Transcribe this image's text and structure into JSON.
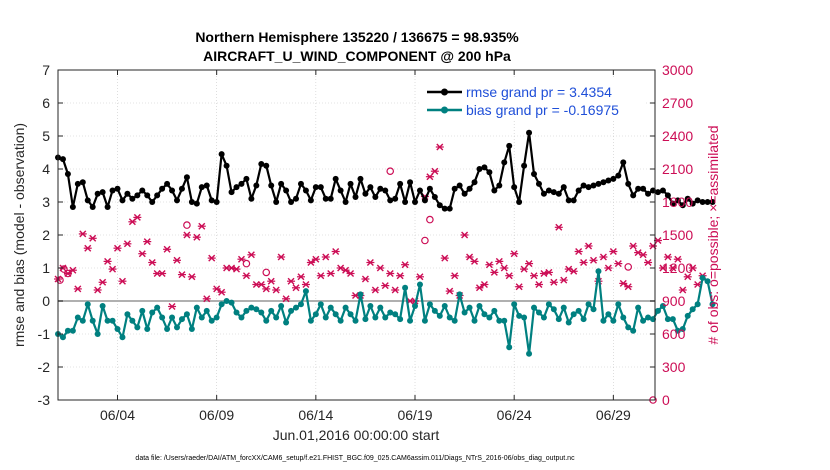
{
  "chart_data": {
    "type": "line",
    "title_line1": "Northern Hemisphere 135220 / 136675 = 98.935%",
    "title_line2": "AIRCRAFT_U_WIND_COMPONENT @ 200 hPa",
    "ylabel": "rmse and bias (model - observation)",
    "ylabel_right": "# of obs: o=possible; ×=assimilated",
    "xlabel": "Jun.01,2016 00:00:00 start",
    "footer": "data file: /Users/raeder/DAI/ATM_forcXX/CAM6_setup/f.e21.FHIST_BGC.f09_025.CAM6assim.011/Diags_NTrS_2016-06/obs_diag_output.nc",
    "ylim": [
      -3,
      7
    ],
    "ylim_right": [
      0,
      3000
    ],
    "xlim": [
      1,
      31.1
    ],
    "yticks": [
      "-3",
      "-2",
      "-1",
      "0",
      "1",
      "2",
      "3",
      "4",
      "5",
      "6",
      "7"
    ],
    "yticks_right": [
      "0",
      "300",
      "600",
      "900",
      "1200",
      "1500",
      "1800",
      "2100",
      "2400",
      "2700",
      "3000"
    ],
    "xticks": [
      {
        "day": 4,
        "label": "06/04"
      },
      {
        "day": 9,
        "label": "06/09"
      },
      {
        "day": 14,
        "label": "06/14"
      },
      {
        "day": 19,
        "label": "06/19"
      },
      {
        "day": 24,
        "label": "06/24"
      },
      {
        "day": 29,
        "label": "06/29"
      }
    ],
    "x_start": 1.0,
    "x_step": 0.25,
    "series": [
      {
        "name": "rmse grand pr = 3.4354",
        "color": "#000000",
        "values": [
          4.35,
          4.3,
          3.85,
          2.85,
          3.55,
          3.6,
          3.05,
          2.85,
          3.25,
          3.3,
          2.85,
          3.35,
          3.4,
          3.05,
          3.25,
          3.1,
          3.2,
          3.35,
          3.2,
          3.0,
          3.2,
          3.4,
          3.55,
          3.35,
          3.05,
          3.4,
          3.75,
          3.0,
          2.95,
          3.45,
          3.5,
          3.05,
          3.0,
          4.45,
          4.1,
          3.3,
          3.45,
          3.55,
          3.7,
          3.1,
          3.5,
          4.15,
          4.1,
          3.5,
          3.0,
          3.55,
          3.35,
          3.0,
          3.1,
          3.55,
          3.35,
          3.05,
          3.45,
          3.45,
          3.1,
          3.1,
          3.7,
          3.35,
          3.0,
          3.55,
          3.15,
          3.7,
          3.25,
          3.45,
          3.15,
          3.4,
          3.35,
          3.05,
          3.1,
          3.55,
          3.0,
          3.6,
          3.0,
          3.35,
          3.05,
          3.4,
          3.15,
          2.9,
          2.8,
          2.8,
          3.4,
          3.5,
          3.25,
          3.4,
          3.6,
          4.0,
          4.05,
          3.9,
          3.35,
          3.5,
          4.2,
          4.7,
          3.45,
          3.0,
          4.1,
          5.1,
          3.85,
          3.55,
          3.25,
          3.35,
          3.3,
          3.25,
          3.45,
          3.05,
          3.05,
          3.35,
          3.5,
          3.45,
          3.5,
          3.55,
          3.6,
          3.65,
          3.7,
          3.8,
          4.2,
          3.55,
          3.2,
          3.4,
          3.4,
          3.25,
          3.35,
          3.3,
          3.35,
          3.2,
          2.95,
          3.05,
          2.9,
          3.1,
          2.95,
          3.05,
          3.0,
          3.0,
          3.0
        ],
        "point_size": 3
      },
      {
        "name": "bias grand pr = -0.16975",
        "color": "#008080",
        "values": [
          -1.0,
          -1.1,
          -0.9,
          -0.9,
          -0.5,
          -0.6,
          -0.1,
          -0.6,
          -1.0,
          -0.15,
          -0.6,
          -0.6,
          -0.85,
          -1.1,
          -0.4,
          -0.6,
          -0.8,
          -0.3,
          -0.85,
          -0.35,
          -0.2,
          -0.5,
          -0.85,
          -0.5,
          -0.8,
          -0.55,
          -0.4,
          -0.85,
          -0.2,
          -0.5,
          -0.3,
          -0.6,
          -0.5,
          -0.1,
          0.0,
          -0.05,
          -0.35,
          -0.5,
          -0.3,
          -0.2,
          -0.25,
          -0.35,
          -0.6,
          -0.3,
          -0.5,
          -0.15,
          -0.65,
          -0.3,
          -0.2,
          -0.1,
          0.3,
          -0.6,
          -0.4,
          -0.1,
          -0.5,
          -0.2,
          -0.4,
          -0.6,
          -0.2,
          -0.4,
          -0.6,
          0.2,
          -0.55,
          -0.15,
          -0.5,
          -0.2,
          -0.5,
          -0.35,
          -0.4,
          -0.55,
          0.4,
          -0.6,
          -0.15,
          0.5,
          -0.6,
          -0.1,
          -0.3,
          -0.45,
          -0.15,
          -0.5,
          -0.6,
          0.2,
          -0.35,
          -0.2,
          -0.6,
          -0.15,
          -0.4,
          -0.5,
          -0.3,
          -0.6,
          -0.6,
          -1.4,
          -0.1,
          -0.45,
          -0.5,
          -1.6,
          -0.2,
          -0.35,
          -0.5,
          -0.1,
          -0.25,
          -0.55,
          -0.2,
          -0.65,
          -0.4,
          -0.3,
          -0.55,
          -0.1,
          -0.25,
          0.9,
          -0.6,
          -0.4,
          -0.6,
          -0.1,
          -0.5,
          -0.8,
          -0.9,
          -0.2,
          -0.6,
          -0.5,
          -0.55,
          -0.3,
          -0.15,
          -0.55,
          -0.55,
          -0.9,
          -0.85,
          -0.45,
          -0.25,
          -0.1,
          0.7,
          0.6,
          -0.1
        ],
        "point_size": 3
      },
      {
        "name": "assimilated",
        "axis": "right",
        "color": "#cc0d55",
        "marker": "x",
        "values": [
          1100,
          1200,
          1150,
          1180,
          1010,
          1510,
          1380,
          1470,
          1000,
          1070,
          1260,
          1190,
          1380,
          1080,
          1420,
          1620,
          1660,
          1330,
          1440,
          1250,
          1150,
          1150,
          1370,
          850,
          1270,
          1140,
          1500,
          1120,
          1480,
          1580,
          920,
          1290,
          1010,
          980,
          1200,
          1200,
          1190,
          1280,
          1130,
          1320,
          1050,
          1050,
          1010,
          1080,
          1000,
          1300,
          920,
          1080,
          1020,
          1120,
          1050,
          1250,
          1280,
          1130,
          1300,
          1150,
          1350,
          1200,
          1180,
          1150,
          950,
          950,
          1100,
          1250,
          1000,
          1200,
          1040,
          1150,
          1000,
          1130,
          1230,
          900,
          900,
          1120,
          1850,
          2030,
          2080,
          2300,
          1290,
          990,
          1130,
          950,
          1500,
          1300,
          1260,
          1020,
          1050,
          1230,
          1160,
          1260,
          1200,
          1130,
          1330,
          1030,
          1190,
          1240,
          1130,
          1050,
          1150,
          1160,
          1070,
          1570,
          1090,
          1190,
          1170,
          1350,
          1250,
          1400,
          1270,
          1080,
          1300,
          1200,
          1350,
          1240,
          1060,
          1030,
          1400,
          1340,
          1320,
          1250,
          1400,
          1450,
          1200,
          1300,
          1200,
          1280,
          1000,
          1120,
          1200,
          1050,
          1130
        ],
        "point_size": 3
      },
      {
        "name": "possible",
        "axis": "right",
        "color": "#cc0d55",
        "marker": "o",
        "points": [
          [
            1.1,
            1090
          ],
          [
            1.3,
            1190
          ],
          [
            1.5,
            1150
          ],
          [
            7.5,
            1590
          ],
          [
            10.5,
            1240
          ],
          [
            11.5,
            1160
          ],
          [
            17.75,
            2080
          ],
          [
            19.5,
            1450
          ],
          [
            19.75,
            1640
          ],
          [
            29.75,
            1210
          ],
          [
            31.0,
            0
          ]
        ]
      }
    ],
    "legend": [
      {
        "label": "rmse grand pr = 3.4354",
        "color": "#000000",
        "marker": "o",
        "position": "top-right"
      },
      {
        "label": "bias grand pr = -0.16975",
        "color": "#008080",
        "marker": "o",
        "position": "top-right"
      }
    ],
    "colors": {
      "rmse": "#000000",
      "bias": "#008080",
      "obs": "#cc0d55",
      "zero_line": "#b0b0b0",
      "grid": "#c8c8c8",
      "axis": "#262626",
      "legend_text": "#1f4fd8"
    }
  }
}
